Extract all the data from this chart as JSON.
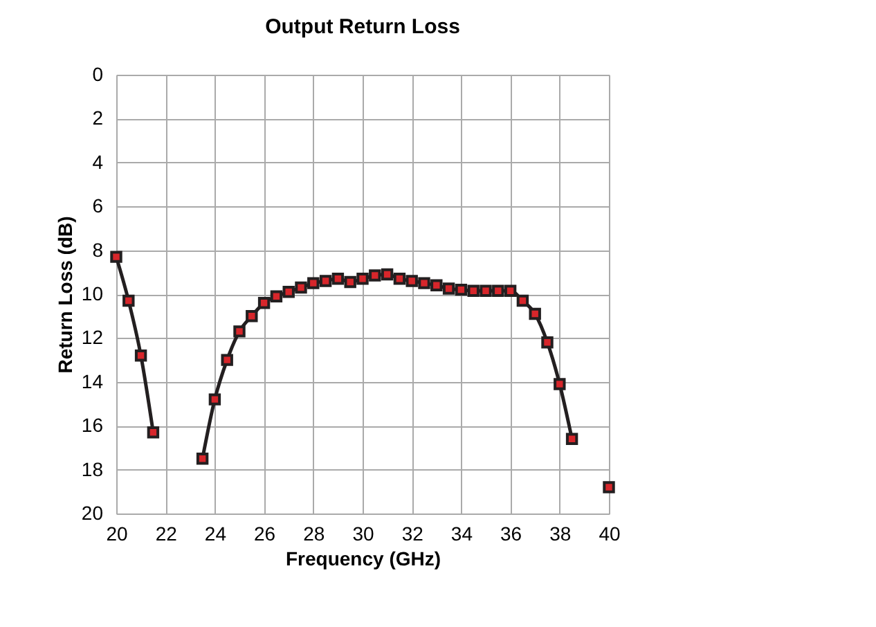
{
  "chart_data": {
    "type": "line",
    "title": "Output Return Loss",
    "xlabel": "Frequency (GHz)",
    "ylabel": "Return Loss (dB)",
    "series": [
      {
        "color": "#231f20",
        "x": [
          20,
          20.5,
          21,
          21.5,
          22.5,
          23.5,
          24,
          24.5,
          25,
          25.5,
          26,
          26.5,
          27,
          27.5,
          28,
          28.5,
          29,
          29.5,
          30,
          30.5,
          31,
          31.5,
          32,
          32.5,
          33,
          33.5,
          34,
          34.5,
          35,
          35.5,
          36,
          36.5,
          37,
          37.5,
          38,
          38.5,
          39.5,
          40
        ],
        "values": [
          8.3,
          10.3,
          12.8,
          16.3,
          null,
          17.5,
          14.8,
          13,
          11.7,
          11,
          10.4,
          10.1,
          9.9,
          9.7,
          9.5,
          9.4,
          9.3,
          9.45,
          9.3,
          9.15,
          9.1,
          9.3,
          9.4,
          9.5,
          9.6,
          9.75,
          9.8,
          9.85,
          9.85,
          9.85,
          9.85,
          10.3,
          10.9,
          12.2,
          14.1,
          16.6,
          null,
          18.8
        ]
      }
    ],
    "xlim": [
      20,
      40
    ],
    "xticks": [
      20,
      22,
      24,
      26,
      28,
      30,
      32,
      34,
      36,
      38,
      40
    ],
    "ylim": [
      20,
      0
    ],
    "yticks": [
      0,
      2,
      4,
      6,
      8,
      10,
      12,
      14,
      16,
      18,
      20
    ],
    "grid": true,
    "marker": "square",
    "line_style": "solid",
    "legend": false
  }
}
